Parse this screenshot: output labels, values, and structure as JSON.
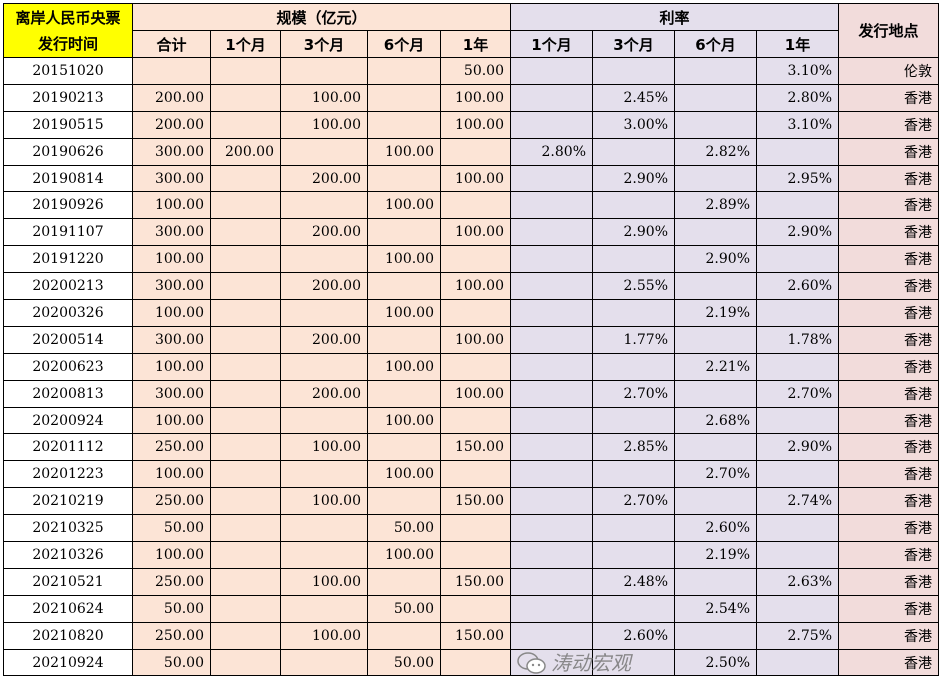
{
  "header": {
    "date_col": "离岸人民币央票发行时间",
    "scale_group": "规模（亿元）",
    "rate_group": "利率",
    "place_col": "发行地点",
    "scale_cols": [
      "合计",
      "1个月",
      "3个月",
      "6个月",
      "1年"
    ],
    "rate_cols": [
      "1个月",
      "3个月",
      "6个月",
      "1年"
    ]
  },
  "rows": [
    [
      "20151020",
      "",
      "",
      "",
      "",
      "50.00",
      "",
      "",
      "",
      "3.10%",
      "伦敦"
    ],
    [
      "20190213",
      "200.00",
      "",
      "100.00",
      "",
      "100.00",
      "",
      "2.45%",
      "",
      "2.80%",
      "香港"
    ],
    [
      "20190515",
      "200.00",
      "",
      "100.00",
      "",
      "100.00",
      "",
      "3.00%",
      "",
      "3.10%",
      "香港"
    ],
    [
      "20190626",
      "300.00",
      "200.00",
      "",
      "100.00",
      "",
      "2.80%",
      "",
      "2.82%",
      "",
      "香港"
    ],
    [
      "20190814",
      "300.00",
      "",
      "200.00",
      "",
      "100.00",
      "",
      "2.90%",
      "",
      "2.95%",
      "香港"
    ],
    [
      "20190926",
      "100.00",
      "",
      "",
      "100.00",
      "",
      "",
      "",
      "2.89%",
      "",
      "香港"
    ],
    [
      "20191107",
      "300.00",
      "",
      "200.00",
      "",
      "100.00",
      "",
      "2.90%",
      "",
      "2.90%",
      "香港"
    ],
    [
      "20191220",
      "100.00",
      "",
      "",
      "100.00",
      "",
      "",
      "",
      "2.90%",
      "",
      "香港"
    ],
    [
      "20200213",
      "300.00",
      "",
      "200.00",
      "",
      "100.00",
      "",
      "2.55%",
      "",
      "2.60%",
      "香港"
    ],
    [
      "20200326",
      "100.00",
      "",
      "",
      "100.00",
      "",
      "",
      "",
      "2.19%",
      "",
      "香港"
    ],
    [
      "20200514",
      "300.00",
      "",
      "200.00",
      "",
      "100.00",
      "",
      "1.77%",
      "",
      "1.78%",
      "香港"
    ],
    [
      "20200623",
      "100.00",
      "",
      "",
      "100.00",
      "",
      "",
      "",
      "2.21%",
      "",
      "香港"
    ],
    [
      "20200813",
      "300.00",
      "",
      "200.00",
      "",
      "100.00",
      "",
      "2.70%",
      "",
      "2.70%",
      "香港"
    ],
    [
      "20200924",
      "100.00",
      "",
      "",
      "100.00",
      "",
      "",
      "",
      "2.68%",
      "",
      "香港"
    ],
    [
      "20201112",
      "250.00",
      "",
      "100.00",
      "",
      "150.00",
      "",
      "2.85%",
      "",
      "2.90%",
      "香港"
    ],
    [
      "20201223",
      "100.00",
      "",
      "",
      "100.00",
      "",
      "",
      "",
      "2.70%",
      "",
      "香港"
    ],
    [
      "20210219",
      "250.00",
      "",
      "100.00",
      "",
      "150.00",
      "",
      "2.70%",
      "",
      "2.74%",
      "香港"
    ],
    [
      "20210325",
      "50.00",
      "",
      "",
      "50.00",
      "",
      "",
      "",
      "2.60%",
      "",
      "香港"
    ],
    [
      "20210326",
      "100.00",
      "",
      "",
      "100.00",
      "",
      "",
      "",
      "2.19%",
      "",
      "香港"
    ],
    [
      "20210521",
      "250.00",
      "",
      "100.00",
      "",
      "150.00",
      "",
      "2.48%",
      "",
      "2.63%",
      "香港"
    ],
    [
      "20210624",
      "50.00",
      "",
      "",
      "50.00",
      "",
      "",
      "",
      "2.54%",
      "",
      "香港"
    ],
    [
      "20210820",
      "250.00",
      "",
      "100.00",
      "",
      "150.00",
      "",
      "2.60%",
      "",
      "2.75%",
      "香港"
    ],
    [
      "20210924",
      "50.00",
      "",
      "",
      "50.00",
      "",
      "",
      "",
      "2.50%",
      "",
      "香港"
    ]
  ],
  "watermark": "涛动宏观",
  "colors": {
    "date_header": "#ffff00",
    "scale": "#fce4d6",
    "rate": "#e4dfec",
    "place": "#f2dcdb"
  }
}
